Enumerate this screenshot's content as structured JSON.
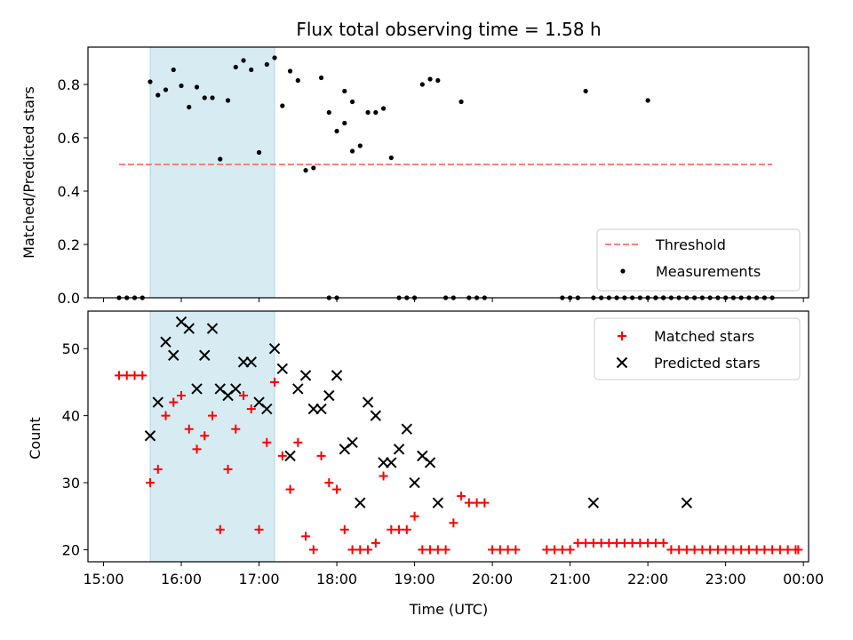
{
  "colors": {
    "shade": "#add8e6",
    "threshold": "#ff7f7f",
    "measurement": "#000000",
    "matched": "#ff0000",
    "predicted": "#000000"
  },
  "chart_data": [
    {
      "type": "scatter",
      "title": "Flux total observing time = 1.58 h",
      "xlabel": "",
      "ylabel": "Matched/Predicted stars",
      "ylim": [
        0,
        0.94
      ],
      "yticks": [
        "0.0",
        "0.2",
        "0.4",
        "0.6",
        "0.8"
      ],
      "shaded_region": [
        "15:36",
        "17:12"
      ],
      "legend_position": "lower right",
      "threshold": {
        "name": "Threshold",
        "y": 0.5,
        "x_range": [
          "15:12",
          "23:36"
        ]
      },
      "series": [
        {
          "name": "Measurements",
          "points": [
            [
              "15:12",
              0
            ],
            [
              "15:18",
              0
            ],
            [
              "15:24",
              0
            ],
            [
              "15:30",
              0
            ],
            [
              "15:36",
              0.81
            ],
            [
              "15:42",
              0.76
            ],
            [
              "15:48",
              0.78
            ],
            [
              "15:54",
              0.855
            ],
            [
              "16:00",
              0.795
            ],
            [
              "16:06",
              0.715
            ],
            [
              "16:12",
              0.79
            ],
            [
              "16:18",
              0.75
            ],
            [
              "16:24",
              0.75
            ],
            [
              "16:30",
              0.52
            ],
            [
              "16:36",
              0.74
            ],
            [
              "16:42",
              0.865
            ],
            [
              "16:48",
              0.89
            ],
            [
              "16:54",
              0.855
            ],
            [
              "17:00",
              0.545
            ],
            [
              "17:06",
              0.875
            ],
            [
              "17:12",
              0.9
            ],
            [
              "17:18",
              0.72
            ],
            [
              "17:24",
              0.85
            ],
            [
              "17:30",
              0.815
            ],
            [
              "17:36",
              0.478
            ],
            [
              "17:42",
              0.487
            ],
            [
              "17:48",
              0.825
            ],
            [
              "17:54",
              0.695
            ],
            [
              "18:00",
              0.625
            ],
            [
              "18:06",
              0.655
            ],
            [
              "18:12",
              0.55
            ],
            [
              "17:54",
              0
            ],
            [
              "18:00",
              0
            ],
            [
              "18:06",
              0.775
            ],
            [
              "18:12",
              0.735
            ],
            [
              "18:18",
              0.57
            ],
            [
              "18:24",
              0.695
            ],
            [
              "18:30",
              0.695
            ],
            [
              "18:36",
              0.71
            ],
            [
              "18:42",
              0.525
            ],
            [
              "18:48",
              0
            ],
            [
              "18:54",
              0
            ],
            [
              "19:00",
              0
            ],
            [
              "19:06",
              0.8
            ],
            [
              "19:12",
              0.82
            ],
            [
              "19:18",
              0.815
            ],
            [
              "19:24",
              0
            ],
            [
              "19:30",
              0
            ],
            [
              "19:36",
              0.735
            ],
            [
              "19:42",
              0
            ],
            [
              "19:48",
              0
            ],
            [
              "19:54",
              0
            ],
            [
              "20:54",
              0
            ],
            [
              "21:00",
              0
            ],
            [
              "21:06",
              0
            ],
            [
              "21:12",
              0.775
            ],
            [
              "21:18",
              0
            ],
            [
              "21:24",
              0
            ],
            [
              "21:30",
              0
            ],
            [
              "21:36",
              0
            ],
            [
              "21:42",
              0
            ],
            [
              "21:48",
              0
            ],
            [
              "21:54",
              0
            ],
            [
              "22:00",
              0
            ],
            [
              "22:06",
              0
            ],
            [
              "22:12",
              0
            ],
            [
              "22:18",
              0
            ],
            [
              "22:00",
              0.74
            ],
            [
              "22:24",
              0
            ],
            [
              "22:30",
              0
            ],
            [
              "22:36",
              0
            ],
            [
              "22:42",
              0
            ],
            [
              "22:48",
              0
            ],
            [
              "22:54",
              0
            ],
            [
              "23:00",
              0
            ],
            [
              "23:06",
              0
            ],
            [
              "23:12",
              0
            ],
            [
              "23:18",
              0
            ],
            [
              "23:24",
              0
            ],
            [
              "23:30",
              0
            ],
            [
              "23:36",
              0
            ],
            [
              "22:06",
              0
            ],
            [
              "22:12",
              0
            ]
          ]
        }
      ]
    },
    {
      "type": "scatter",
      "title": "",
      "xlabel": "Time (UTC)",
      "ylabel": "Count",
      "ylim": [
        18.2,
        55.6
      ],
      "yticks": [
        "20",
        "30",
        "40",
        "50"
      ],
      "xticks": [
        "15:00",
        "16:00",
        "17:00",
        "18:00",
        "19:00",
        "20:00",
        "21:00",
        "22:00",
        "23:00",
        "00:00"
      ],
      "shaded_region": [
        "15:36",
        "17:12"
      ],
      "legend_position": "upper right",
      "series": [
        {
          "name": "Matched stars",
          "marker": "plus",
          "points": [
            [
              "15:12",
              46
            ],
            [
              "15:18",
              46
            ],
            [
              "15:24",
              46
            ],
            [
              "15:30",
              46
            ],
            [
              "15:36",
              30
            ],
            [
              "15:42",
              32
            ],
            [
              "15:48",
              40
            ],
            [
              "15:54",
              42
            ],
            [
              "16:00",
              43
            ],
            [
              "16:06",
              38
            ],
            [
              "16:12",
              35
            ],
            [
              "16:18",
              37
            ],
            [
              "16:24",
              40
            ],
            [
              "16:30",
              23
            ],
            [
              "16:36",
              32
            ],
            [
              "16:42",
              38
            ],
            [
              "16:48",
              43
            ],
            [
              "16:54",
              41
            ],
            [
              "17:00",
              23
            ],
            [
              "17:06",
              36
            ],
            [
              "17:12",
              45
            ],
            [
              "17:18",
              34
            ],
            [
              "17:24",
              29
            ],
            [
              "17:30",
              36
            ],
            [
              "17:36",
              22
            ],
            [
              "17:42",
              20
            ],
            [
              "17:48",
              34
            ],
            [
              "17:54",
              30
            ],
            [
              "18:00",
              29
            ],
            [
              "18:06",
              23
            ],
            [
              "18:12",
              20
            ],
            [
              "18:18",
              20
            ],
            [
              "18:24",
              20
            ],
            [
              "18:30",
              21
            ],
            [
              "18:36",
              31
            ],
            [
              "18:42",
              23
            ],
            [
              "18:48",
              23
            ],
            [
              "18:54",
              23
            ],
            [
              "19:00",
              25
            ],
            [
              "19:06",
              20
            ],
            [
              "19:12",
              20
            ],
            [
              "19:18",
              20
            ],
            [
              "19:24",
              20
            ],
            [
              "19:30",
              24
            ],
            [
              "19:36",
              28
            ],
            [
              "19:42",
              27
            ],
            [
              "19:48",
              27
            ],
            [
              "19:54",
              27
            ],
            [
              "20:00",
              20
            ],
            [
              "20:06",
              20
            ],
            [
              "20:12",
              20
            ],
            [
              "20:18",
              20
            ],
            [
              "20:42",
              20
            ],
            [
              "20:48",
              20
            ],
            [
              "20:54",
              20
            ],
            [
              "21:00",
              20
            ],
            [
              "21:06",
              21
            ],
            [
              "21:12",
              21
            ],
            [
              "21:18",
              21
            ],
            [
              "21:24",
              21
            ],
            [
              "21:30",
              21
            ],
            [
              "21:36",
              21
            ],
            [
              "21:42",
              21
            ],
            [
              "21:48",
              21
            ],
            [
              "21:54",
              21
            ],
            [
              "22:00",
              21
            ],
            [
              "22:06",
              21
            ],
            [
              "22:12",
              21
            ],
            [
              "22:18",
              20
            ],
            [
              "22:24",
              20
            ],
            [
              "22:30",
              20
            ],
            [
              "22:36",
              20
            ],
            [
              "22:42",
              20
            ],
            [
              "22:48",
              20
            ],
            [
              "22:54",
              20
            ],
            [
              "23:00",
              20
            ],
            [
              "23:06",
              20
            ],
            [
              "23:12",
              20
            ],
            [
              "23:18",
              20
            ],
            [
              "23:24",
              20
            ],
            [
              "23:30",
              20
            ],
            [
              "23:36",
              20
            ],
            [
              "23:42",
              20
            ],
            [
              "23:48",
              20
            ],
            [
              "23:54",
              20
            ],
            [
              "23:56",
              20
            ]
          ]
        },
        {
          "name": "Predicted stars",
          "marker": "x",
          "points": [
            [
              "15:36",
              37
            ],
            [
              "15:42",
              42
            ],
            [
              "15:48",
              51
            ],
            [
              "15:54",
              49
            ],
            [
              "16:00",
              54
            ],
            [
              "16:06",
              53
            ],
            [
              "16:12",
              44
            ],
            [
              "16:18",
              49
            ],
            [
              "16:24",
              53
            ],
            [
              "16:30",
              44
            ],
            [
              "16:36",
              43
            ],
            [
              "16:42",
              44
            ],
            [
              "16:48",
              48
            ],
            [
              "16:54",
              48
            ],
            [
              "17:00",
              42
            ],
            [
              "17:06",
              41
            ],
            [
              "17:12",
              50
            ],
            [
              "17:18",
              47
            ],
            [
              "17:24",
              34
            ],
            [
              "17:30",
              44
            ],
            [
              "17:36",
              46
            ],
            [
              "17:42",
              41
            ],
            [
              "17:48",
              41
            ],
            [
              "17:54",
              43
            ],
            [
              "18:00",
              46
            ],
            [
              "18:06",
              35
            ],
            [
              "18:12",
              36
            ],
            [
              "18:18",
              27
            ],
            [
              "18:24",
              42
            ],
            [
              "18:30",
              40
            ],
            [
              "18:36",
              33
            ],
            [
              "18:42",
              33
            ],
            [
              "18:48",
              35
            ],
            [
              "18:54",
              38
            ],
            [
              "19:00",
              30
            ],
            [
              "19:06",
              34
            ],
            [
              "19:12",
              33
            ],
            [
              "19:18",
              27
            ],
            [
              "21:18",
              27
            ],
            [
              "22:30",
              27
            ]
          ]
        }
      ]
    }
  ]
}
